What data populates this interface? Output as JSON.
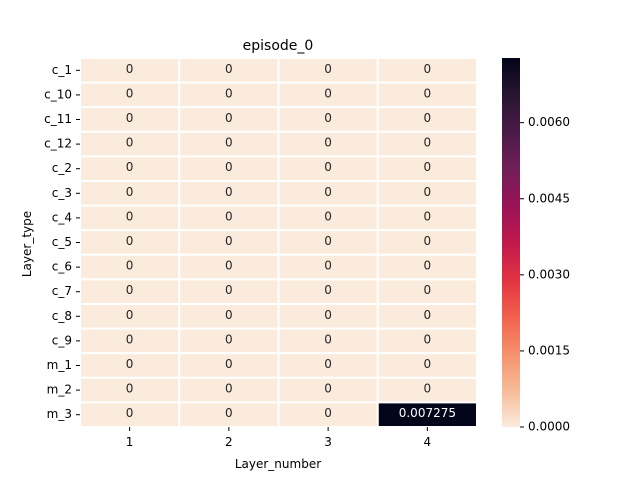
{
  "chart_data": {
    "type": "heatmap",
    "title": "episode_0",
    "xlabel": "Layer_number",
    "ylabel": "Layer_type",
    "x_categories": [
      "1",
      "2",
      "3",
      "4"
    ],
    "y_categories": [
      "c_1",
      "c_10",
      "c_11",
      "c_12",
      "c_2",
      "c_3",
      "c_4",
      "c_5",
      "c_6",
      "c_7",
      "c_8",
      "c_9",
      "m_1",
      "m_2",
      "m_3"
    ],
    "values": [
      [
        0,
        0,
        0,
        0
      ],
      [
        0,
        0,
        0,
        0
      ],
      [
        0,
        0,
        0,
        0
      ],
      [
        0,
        0,
        0,
        0
      ],
      [
        0,
        0,
        0,
        0
      ],
      [
        0,
        0,
        0,
        0
      ],
      [
        0,
        0,
        0,
        0
      ],
      [
        0,
        0,
        0,
        0
      ],
      [
        0,
        0,
        0,
        0
      ],
      [
        0,
        0,
        0,
        0
      ],
      [
        0,
        0,
        0,
        0
      ],
      [
        0,
        0,
        0,
        0
      ],
      [
        0,
        0,
        0,
        0
      ],
      [
        0,
        0,
        0,
        0
      ],
      [
        0,
        0,
        0,
        0.007275
      ]
    ],
    "cell_labels": [
      [
        "0",
        "0",
        "0",
        "0"
      ],
      [
        "0",
        "0",
        "0",
        "0"
      ],
      [
        "0",
        "0",
        "0",
        "0"
      ],
      [
        "0",
        "0",
        "0",
        "0"
      ],
      [
        "0",
        "0",
        "0",
        "0"
      ],
      [
        "0",
        "0",
        "0",
        "0"
      ],
      [
        "0",
        "0",
        "0",
        "0"
      ],
      [
        "0",
        "0",
        "0",
        "0"
      ],
      [
        "0",
        "0",
        "0",
        "0"
      ],
      [
        "0",
        "0",
        "0",
        "0"
      ],
      [
        "0",
        "0",
        "0",
        "0"
      ],
      [
        "0",
        "0",
        "0",
        "0"
      ],
      [
        "0",
        "0",
        "0",
        "0"
      ],
      [
        "0",
        "0",
        "0",
        "0"
      ],
      [
        "0",
        "0",
        "0",
        "0.007275"
      ]
    ],
    "colorbar": {
      "min": 0,
      "max": 0.007275,
      "ticks": [
        0.0,
        0.0015,
        0.003,
        0.0045,
        0.006
      ],
      "tick_labels": [
        "0.0000",
        "0.0015",
        "0.0030",
        "0.0045",
        "0.0060"
      ],
      "colormap": "rocket_r",
      "low_color": "#faebdd",
      "high_color": "#03051a"
    }
  }
}
